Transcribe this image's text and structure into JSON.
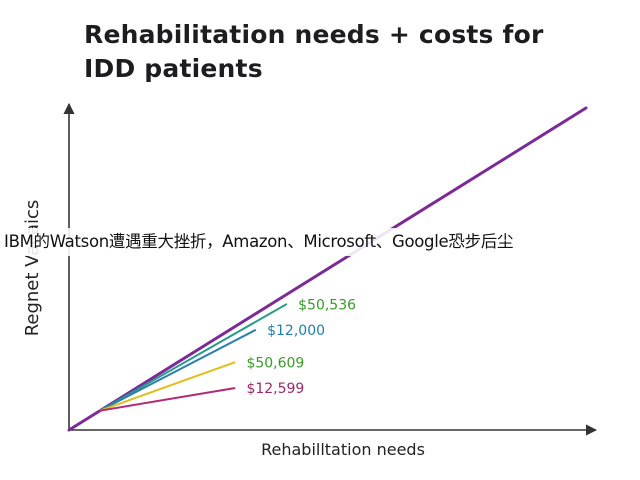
{
  "chart_data": {
    "type": "line",
    "title": "Rehabilitation needs + costs for\nIDD patients",
    "xlabel": "Rehabilltation needs",
    "ylabel": "Regnet Vacaics",
    "xlim": [
      0,
      10
    ],
    "ylim": [
      0,
      10
    ],
    "grid": false,
    "legend": "none",
    "series": [
      {
        "color": "#7b2a96",
        "x": [
          0,
          10
        ],
        "y": [
          0,
          10
        ]
      },
      {
        "label": "$50,536",
        "label_color": "#3a9a2a",
        "color": "#2a9a8a",
        "x": [
          0.6,
          4.2
        ],
        "y": [
          0.6,
          3.9
        ]
      },
      {
        "label": "$12,000",
        "label_color": "#1f7fa8",
        "color": "#2a7fb0",
        "x": [
          0.6,
          3.6
        ],
        "y": [
          0.6,
          3.1
        ]
      },
      {
        "label": "$50,609",
        "label_color": "#3a9a2a",
        "color": "#e0bf1a",
        "x": [
          0.6,
          3.2
        ],
        "y": [
          0.6,
          2.1
        ]
      },
      {
        "label": "$12,599",
        "label_color": "#9a2a6a",
        "color": "#b02a78",
        "x": [
          0.6,
          3.2
        ],
        "y": [
          0.6,
          1.3
        ]
      }
    ]
  },
  "overlay": {
    "text": "IBM的Watson遭遇重大挫折，Amazon、Microsoft、Google恐步后尘"
  }
}
